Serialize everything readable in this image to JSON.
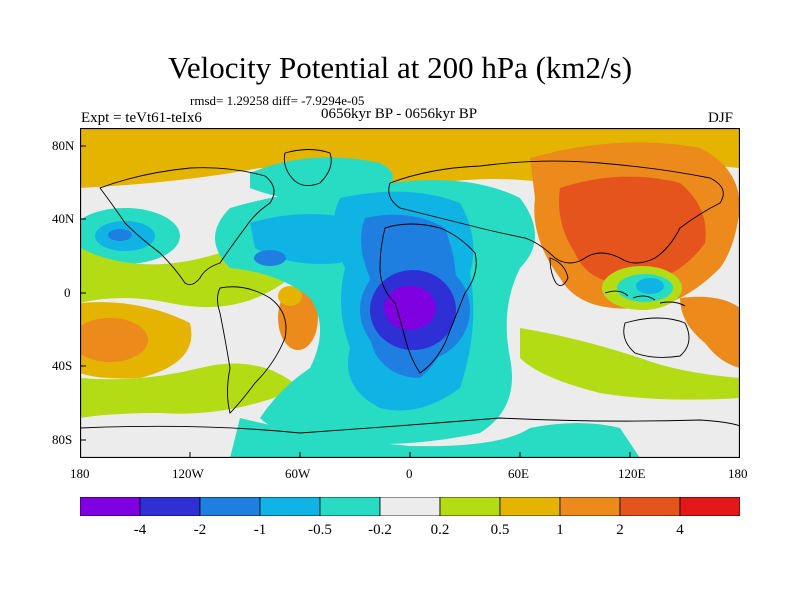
{
  "title": "Velocity Potential at 200 hPa (km2/s)",
  "stats": "rmsd= 1.29258 diff= -7.9294e-05",
  "experiment": "Expt = teVt61-teIx6",
  "period": "0656kyr BP - 0656kyr BP",
  "season": "DJF",
  "lat_labels": [
    "80N",
    "40N",
    "0",
    "40S",
    "80S"
  ],
  "lon_labels": [
    "180",
    "120W",
    "60W",
    "0",
    "60E",
    "120E",
    "180"
  ],
  "colorbar": {
    "labels": [
      "-4",
      "-2",
      "-1",
      "-0.5",
      "-0.2",
      "0.2",
      "0.5",
      "1",
      "2",
      "4"
    ],
    "colors": [
      "#7f00e0",
      "#2f2fd6",
      "#1f7fe0",
      "#10b4e4",
      "#28dcc4",
      "#ececec",
      "#b4dc14",
      "#e4b400",
      "#ec8a1c",
      "#e4541c",
      "#e41818"
    ]
  }
}
